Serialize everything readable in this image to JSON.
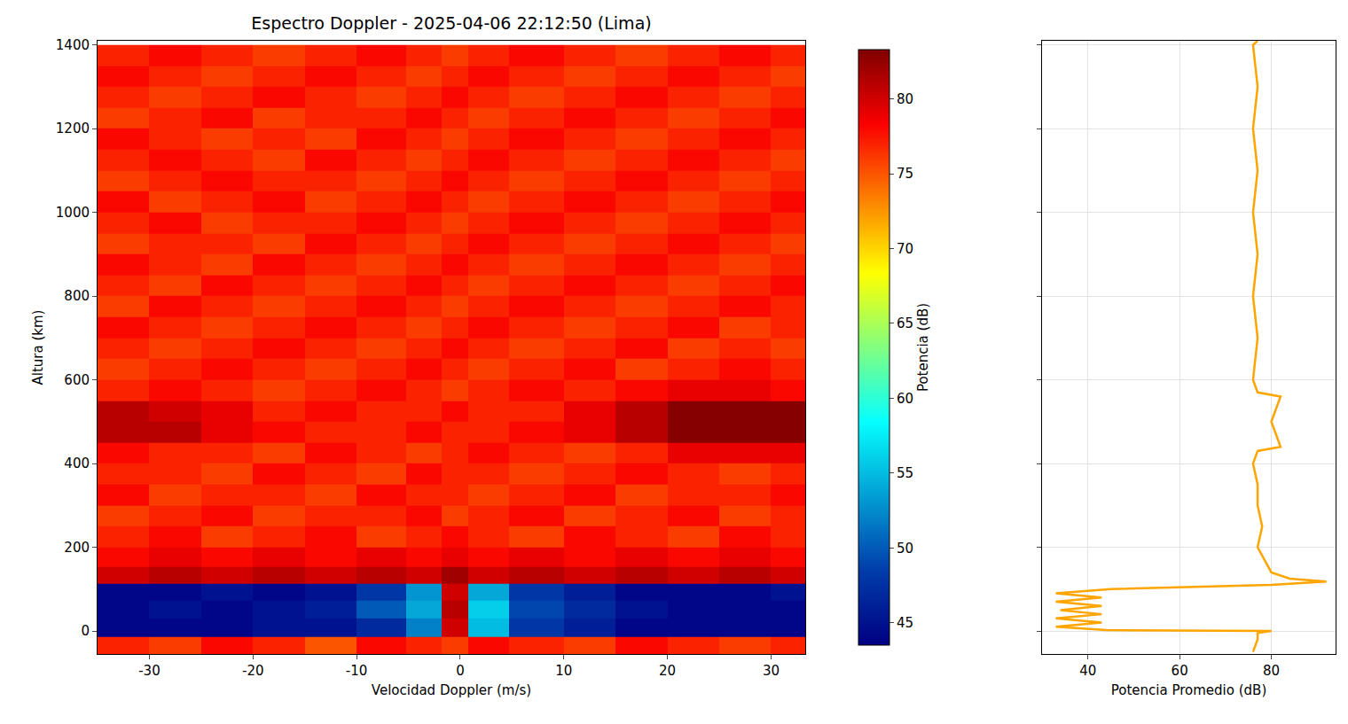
{
  "chart_data": [
    {
      "type": "heatmap",
      "title": "Espectro Doppler - 2025-04-06 22:12:50 (Lima)",
      "x_label": "Velocidad Doppler (m/s)",
      "y_label": "Altura (km)",
      "x": [
        -32.5,
        -27.5,
        -22.5,
        -17.5,
        -12.5,
        -7.5,
        -3,
        -0.5,
        2,
        7.5,
        12.5,
        17.5,
        22.5,
        27.5,
        32.5
      ],
      "y": [
        -40,
        10,
        50,
        95,
        130,
        175,
        225,
        275,
        325,
        375,
        425,
        475,
        525,
        575,
        625,
        675,
        725,
        775,
        825,
        875,
        925,
        975,
        1025,
        1075,
        1125,
        1175,
        1225,
        1275,
        1325,
        1375
      ],
      "z": [
        [
          77,
          76,
          78,
          77,
          75,
          78,
          77,
          76,
          78,
          77,
          76,
          78,
          77,
          76,
          77
        ],
        [
          44,
          44,
          44,
          45,
          45,
          47,
          52,
          80,
          55,
          48,
          46,
          44,
          44,
          44,
          44
        ],
        [
          44,
          45,
          44,
          45,
          46,
          50,
          54,
          81,
          56,
          49,
          47,
          45,
          44,
          44,
          44
        ],
        [
          44,
          44,
          45,
          44,
          45,
          48,
          53,
          80,
          54,
          48,
          46,
          44,
          44,
          44,
          45
        ],
        [
          80,
          81,
          80,
          81,
          80,
          81,
          80,
          82,
          80,
          81,
          80,
          81,
          80,
          81,
          80
        ],
        [
          78,
          79,
          78,
          79,
          78,
          79,
          78,
          79,
          78,
          79,
          78,
          79,
          78,
          79,
          78
        ],
        [
          77,
          78,
          76,
          77,
          78,
          76,
          77,
          78,
          77,
          76,
          78,
          77,
          76,
          78,
          77
        ],
        [
          76,
          77,
          78,
          76,
          77,
          77,
          78,
          76,
          77,
          78,
          76,
          77,
          78,
          76,
          77
        ],
        [
          78,
          76,
          77,
          77,
          76,
          78,
          77,
          77,
          76,
          77,
          78,
          76,
          77,
          77,
          78
        ],
        [
          77,
          77,
          76,
          78,
          77,
          76,
          78,
          77,
          77,
          76,
          77,
          78,
          77,
          76,
          77
        ],
        [
          78,
          77,
          77,
          76,
          78,
          77,
          76,
          77,
          78,
          77,
          76,
          77,
          79,
          79,
          79
        ],
        [
          81,
          81,
          79,
          78,
          77,
          77,
          78,
          77,
          77,
          78,
          79,
          81,
          83,
          83,
          83
        ],
        [
          81,
          80,
          79,
          77,
          78,
          77,
          77,
          78,
          77,
          77,
          79,
          81,
          83,
          83,
          83
        ],
        [
          77,
          78,
          77,
          76,
          77,
          78,
          77,
          76,
          77,
          78,
          77,
          78,
          79,
          79,
          78
        ],
        [
          76,
          77,
          78,
          77,
          76,
          77,
          78,
          77,
          76,
          77,
          78,
          76,
          77,
          78,
          77
        ],
        [
          77,
          76,
          77,
          78,
          77,
          76,
          77,
          78,
          77,
          76,
          77,
          78,
          76,
          77,
          76
        ],
        [
          78,
          77,
          76,
          77,
          78,
          77,
          76,
          77,
          78,
          77,
          76,
          77,
          78,
          76,
          77
        ],
        [
          76,
          78,
          77,
          76,
          77,
          78,
          77,
          76,
          77,
          78,
          77,
          76,
          77,
          78,
          77
        ],
        [
          77,
          76,
          78,
          77,
          76,
          77,
          78,
          77,
          76,
          77,
          78,
          77,
          76,
          77,
          78
        ],
        [
          78,
          77,
          76,
          78,
          77,
          76,
          77,
          78,
          77,
          76,
          77,
          78,
          77,
          76,
          77
        ],
        [
          76,
          77,
          77,
          76,
          78,
          77,
          76,
          77,
          78,
          77,
          76,
          77,
          78,
          77,
          76
        ],
        [
          77,
          78,
          76,
          77,
          77,
          78,
          77,
          76,
          77,
          78,
          77,
          76,
          77,
          78,
          77
        ],
        [
          78,
          76,
          77,
          78,
          76,
          77,
          78,
          77,
          76,
          77,
          78,
          77,
          76,
          77,
          78
        ],
        [
          76,
          77,
          78,
          77,
          77,
          76,
          77,
          78,
          77,
          76,
          77,
          78,
          77,
          76,
          77
        ],
        [
          77,
          78,
          77,
          76,
          78,
          77,
          76,
          77,
          78,
          77,
          76,
          77,
          78,
          77,
          76
        ],
        [
          78,
          77,
          76,
          77,
          76,
          78,
          77,
          76,
          77,
          78,
          77,
          76,
          77,
          78,
          77
        ],
        [
          76,
          77,
          78,
          76,
          77,
          77,
          78,
          77,
          76,
          77,
          78,
          77,
          76,
          77,
          78
        ],
        [
          77,
          76,
          77,
          78,
          77,
          76,
          77,
          78,
          77,
          76,
          77,
          78,
          77,
          76,
          77
        ],
        [
          78,
          77,
          76,
          77,
          78,
          77,
          76,
          77,
          78,
          77,
          76,
          77,
          78,
          77,
          76
        ],
        [
          77,
          78,
          77,
          76,
          77,
          78,
          77,
          76,
          77,
          78,
          77,
          76,
          77,
          78,
          77
        ]
      ],
      "xlim": [
        -35,
        33.3
      ],
      "ylim": [
        -55,
        1410
      ],
      "xticks": [
        -30,
        -20,
        -10,
        0,
        10,
        20,
        30
      ],
      "yticks": [
        0,
        200,
        400,
        600,
        800,
        1000,
        1200,
        1400
      ],
      "colorbar": {
        "title": "Potencia (dB)",
        "range": [
          43.5,
          83.3
        ],
        "ticks": [
          45,
          50,
          55,
          60,
          65,
          70,
          75,
          80
        ]
      }
    },
    {
      "type": "line",
      "x_label": "Potencia Promedio (dB)",
      "color": "#ffa500",
      "x": [
        76,
        77,
        77,
        80,
        44,
        33,
        43,
        33,
        43,
        34,
        43,
        33,
        43,
        33,
        45,
        80,
        92,
        84,
        80,
        79,
        78,
        77,
        78,
        77,
        77,
        76,
        77,
        82,
        81,
        80,
        81,
        82,
        77,
        76,
        77,
        76,
        77,
        76,
        77,
        76,
        77,
        76,
        77
      ],
      "y": [
        -50,
        -20,
        -5,
        0,
        2,
        10,
        20,
        30,
        40,
        50,
        60,
        70,
        80,
        90,
        100,
        110,
        118,
        125,
        140,
        160,
        180,
        200,
        250,
        300,
        350,
        400,
        430,
        440,
        470,
        500,
        530,
        560,
        570,
        600,
        700,
        800,
        900,
        1000,
        1100,
        1200,
        1300,
        1400,
        1410
      ],
      "xlim": [
        30,
        94
      ],
      "ylim": [
        -55,
        1410
      ],
      "xticks": [
        40,
        60,
        80
      ],
      "yticks": [
        0,
        200,
        400,
        600,
        800,
        1000,
        1200,
        1400
      ],
      "grid": true,
      "tick_labels": "x"
    }
  ]
}
